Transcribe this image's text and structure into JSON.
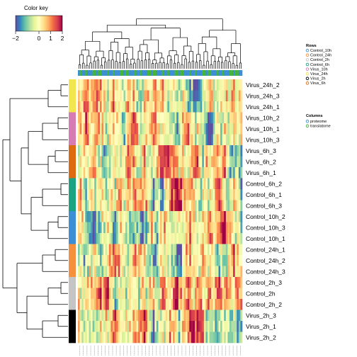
{
  "chart_data": {
    "type": "heatmap",
    "title": "",
    "color_key": {
      "title": "Color key",
      "ticks": [
        -2,
        0,
        1,
        2
      ],
      "tick_labels": [
        "−2",
        "0",
        "1",
        "2"
      ],
      "range": [
        -2,
        2
      ],
      "palette": [
        "#5e4fa2",
        "#3288bd",
        "#66c2a5",
        "#abdda4",
        "#e6f598",
        "#ffffbf",
        "#fee08b",
        "#fdae61",
        "#f46d43",
        "#d53e4f",
        "#9e0142"
      ]
    },
    "rows": [
      {
        "label": "Virus_24h_2",
        "group": "Virus_24h"
      },
      {
        "label": "Virus_24h_3",
        "group": "Virus_24h"
      },
      {
        "label": "Virus_24h_1",
        "group": "Virus_24h"
      },
      {
        "label": "Virus_10h_2",
        "group": "Virus_10h"
      },
      {
        "label": "Virus_10h_1",
        "group": "Virus_10h"
      },
      {
        "label": "Virus_10h_3",
        "group": "Virus_10h"
      },
      {
        "label": "Virus_6h_3",
        "group": "Virus_6h"
      },
      {
        "label": "Virus_6h_2",
        "group": "Virus_6h"
      },
      {
        "label": "Virus_6h_1",
        "group": "Virus_6h"
      },
      {
        "label": "Control_6h_2",
        "group": "Control_6h"
      },
      {
        "label": "Control_6h_1",
        "group": "Control_6h"
      },
      {
        "label": "Control_6h_3",
        "group": "Control_6h"
      },
      {
        "label": "Control_10h_2",
        "group": "Control_10h"
      },
      {
        "label": "Control_10h_3",
        "group": "Control_10h"
      },
      {
        "label": "Control_10h_1",
        "group": "Control_10h"
      },
      {
        "label": "Control_24h_1",
        "group": "Control_24h"
      },
      {
        "label": "Control_24h_2",
        "group": "Control_24h"
      },
      {
        "label": "Control_24h_3",
        "group": "Control_24h"
      },
      {
        "label": "Control_2h_3",
        "group": "Control_2h"
      },
      {
        "label": "Control_2h",
        "group": "Control_2h"
      },
      {
        "label": "Control_2h_2",
        "group": "Control_2h"
      },
      {
        "label": "Virus_2h_3",
        "group": "Virus_2h"
      },
      {
        "label": "Virus_2h_1",
        "group": "Virus_2h"
      },
      {
        "label": "Virus_2h_2",
        "group": "Virus_2h"
      }
    ],
    "row_legend": {
      "title": "Rows",
      "entries": [
        {
          "name": "Control_10h",
          "color": "#3c8fd4"
        },
        {
          "name": "Control_24h",
          "color": "#f5903c"
        },
        {
          "name": "Control_2h",
          "color": "#c4c4c4"
        },
        {
          "name": "Control_6h",
          "color": "#1aa383"
        },
        {
          "name": "Virus_10h",
          "color": "#d67bb4"
        },
        {
          "name": "Virus_24h",
          "color": "#f2e64e"
        },
        {
          "name": "Virus_2h",
          "color": "#000000"
        },
        {
          "name": "Virus_6h",
          "color": "#de6a10"
        }
      ]
    },
    "column_legend": {
      "title": "Columns",
      "entries": [
        {
          "name": "proteome",
          "color": "#3c8fd4"
        },
        {
          "name": "translatome",
          "color": "#47b23c"
        }
      ]
    },
    "n_columns": 90,
    "column_labels_note": "column labels are too small to read"
  }
}
